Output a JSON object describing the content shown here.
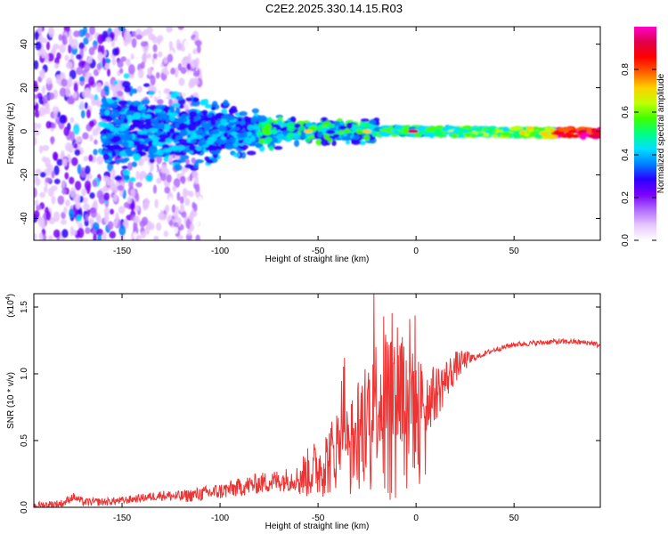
{
  "title": "C2E2.2025.330.14.15.R03",
  "chart_data": [
    {
      "type": "heatmap",
      "xlabel": "Height of straight line (km)",
      "ylabel": "Frequency (Hz)",
      "xlim": [
        -195,
        94
      ],
      "ylim": [
        -50,
        48
      ],
      "xticks": [
        -150,
        -100,
        -50,
        0,
        50
      ],
      "yticks": [
        -40,
        -20,
        0,
        20,
        40
      ],
      "colorbar": {
        "label": "Normalized spectral amplitude",
        "range": [
          0.0,
          1.0
        ],
        "ticks": [
          0.0,
          0.2,
          0.4,
          0.6,
          0.8
        ],
        "tick_labels": [
          "0.0",
          "0.2",
          "0.4",
          "0.6",
          "0.8"
        ],
        "colors": [
          "#ffffff",
          "#e6c6ff",
          "#b06bff",
          "#7a00ff",
          "#2b00ff",
          "#0080ff",
          "#00e0ff",
          "#00ff80",
          "#40ff00",
          "#c0ff00",
          "#ffd000",
          "#ff6000",
          "#ff0000",
          "#e0004a",
          "#ff00c8"
        ]
      },
      "description_band": "narrow band near 0 Hz strengthening toward positive heights; diffuse weak energy below -140 km"
    },
    {
      "type": "line",
      "xlabel": "Height of straight line (km)",
      "ylabel": "SNR (10 * v/v)",
      "multiplier_label": "(x10",
      "multiplier_exp": "4",
      "xlim": [
        -195,
        94
      ],
      "ylim": [
        0.0,
        1.6
      ],
      "xticks": [
        -150,
        -100,
        -50,
        0,
        50
      ],
      "yticks": [
        0.0,
        0.5,
        1.0,
        1.5
      ],
      "ytick_labels": [
        "0.0",
        "0.5",
        "1.0",
        "1.5"
      ],
      "color": "#ee3333",
      "series": [
        {
          "name": "SNR",
          "x": [
            -195,
            -180,
            -175,
            -170,
            -160,
            -150,
            -140,
            -130,
            -120,
            -110,
            -100,
            -90,
            -80,
            -70,
            -60,
            -55,
            -50,
            -45,
            -40,
            -37,
            -35,
            -30,
            -25,
            -22,
            -20,
            -15,
            -10,
            -5,
            0,
            5,
            10,
            15,
            20,
            25,
            30,
            40,
            50,
            60,
            70,
            80,
            90,
            94
          ],
          "y": [
            0.01,
            0.03,
            0.08,
            0.04,
            0.04,
            0.05,
            0.07,
            0.09,
            0.08,
            0.1,
            0.12,
            0.15,
            0.18,
            0.2,
            0.22,
            0.26,
            0.3,
            0.35,
            0.45,
            0.8,
            0.4,
            0.55,
            0.7,
            0.9,
            0.8,
            0.9,
            0.95,
            0.85,
            0.85,
            0.8,
            0.85,
            0.95,
            1.05,
            1.1,
            1.12,
            1.18,
            1.22,
            1.23,
            1.24,
            1.24,
            1.23,
            1.21
          ]
        }
      ],
      "peaks": [
        {
          "x": -36.5,
          "y": 1.12
        },
        {
          "x": -21.5,
          "y": 1.6
        },
        {
          "x": -16.5,
          "y": 1.43
        },
        {
          "x": -11,
          "y": 1.2
        },
        {
          "x": -7.5,
          "y": 1.23
        }
      ]
    }
  ]
}
